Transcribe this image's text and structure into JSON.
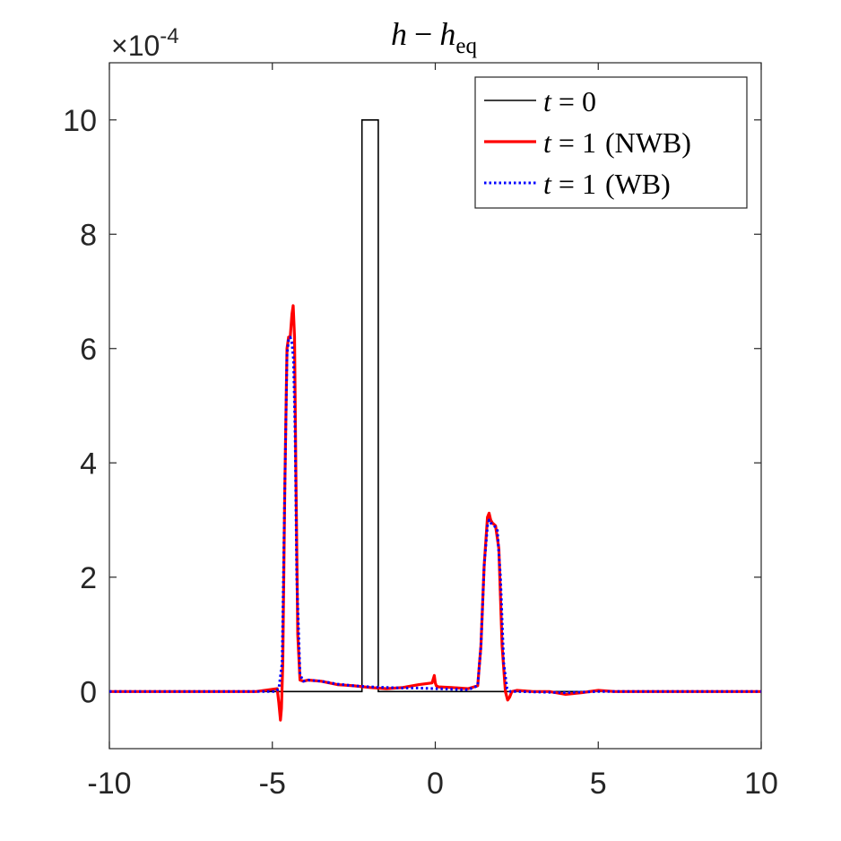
{
  "chart_data": {
    "type": "line",
    "title": {
      "var": "h",
      "op": "−",
      "var2": "h",
      "sub": "eq"
    },
    "xlabel": "",
    "ylabel": "",
    "xlim": [
      -10,
      10
    ],
    "ylim": [
      -1,
      11
    ],
    "exponent_label": {
      "base": "×10",
      "exp": "-4"
    },
    "xticks": [
      -10,
      -5,
      0,
      5,
      10
    ],
    "xtick_labels": [
      "-10",
      "-5",
      "0",
      "5",
      "10"
    ],
    "yticks": [
      0,
      2,
      4,
      6,
      8,
      10
    ],
    "ytick_labels": [
      "0",
      "2",
      "4",
      "6",
      "8",
      "10"
    ],
    "grid": false,
    "legend_position": "top-right",
    "series": [
      {
        "name": "t = 0",
        "legend": {
          "var": "t",
          "eq": " = 0",
          "note": ""
        },
        "color": "#000000",
        "style": "solid",
        "x": [
          -10,
          -2.25,
          -2.25,
          -1.75,
          -1.75,
          10
        ],
        "y": [
          0,
          0,
          10,
          10,
          0,
          0
        ]
      },
      {
        "name": "t = 1 (NWB)",
        "legend": {
          "var": "t",
          "eq": " = 1",
          "note": "(NWB)"
        },
        "color": "#ff0000",
        "style": "solid",
        "x": [
          -10,
          -5.5,
          -4.85,
          -4.8,
          -4.75,
          -4.72,
          -4.68,
          -4.62,
          -4.55,
          -4.5,
          -4.45,
          -4.4,
          -4.36,
          -4.32,
          -4.28,
          -4.22,
          -4.15,
          -4.05,
          -3.9,
          -3.5,
          -3.0,
          -2.5,
          -2.0,
          -1.5,
          -1.0,
          -0.5,
          -0.1,
          -0.03,
          0.0,
          0.03,
          0.1,
          0.5,
          1.0,
          1.3,
          1.4,
          1.5,
          1.6,
          1.65,
          1.7,
          1.75,
          1.85,
          1.95,
          2.05,
          2.15,
          2.22,
          2.28,
          2.35,
          2.5,
          3.0,
          3.5,
          4.0,
          4.5,
          5.0,
          5.5,
          6.0,
          10
        ],
        "y": [
          0,
          0,
          0.05,
          -0.2,
          -0.5,
          -0.3,
          0.5,
          3.5,
          6.0,
          6.2,
          6.2,
          6.6,
          6.75,
          6.2,
          4.0,
          1.0,
          0.2,
          0.18,
          0.2,
          0.18,
          0.12,
          0.1,
          0.07,
          0.05,
          0.07,
          0.12,
          0.15,
          0.28,
          0.15,
          0.1,
          0.08,
          0.07,
          0.05,
          0.1,
          0.8,
          2.2,
          3.05,
          3.12,
          3.0,
          2.95,
          2.9,
          2.5,
          0.8,
          0.0,
          -0.15,
          -0.1,
          0.0,
          0.02,
          0.0,
          0.0,
          -0.05,
          -0.02,
          0.02,
          0.0,
          0.0,
          0
        ]
      },
      {
        "name": "t = 1 (WB)",
        "legend": {
          "var": "t",
          "eq": " = 1",
          "note": "(WB)"
        },
        "color": "#0000ff",
        "style": "dotted",
        "x": [
          -10,
          -4.9,
          -4.8,
          -4.7,
          -4.62,
          -4.55,
          -4.5,
          -4.45,
          -4.4,
          -4.35,
          -4.3,
          -4.25,
          -4.15,
          -4.05,
          -3.9,
          -3.5,
          -3.0,
          -2.5,
          -2.0,
          -1.5,
          -1.0,
          -0.5,
          0.0,
          0.5,
          1.0,
          1.3,
          1.4,
          1.5,
          1.6,
          1.65,
          1.7,
          1.8,
          1.9,
          2.0,
          2.1,
          2.2,
          2.3,
          2.5,
          4.0,
          5.0,
          10
        ],
        "y": [
          0,
          0,
          0.05,
          0.5,
          3.5,
          5.9,
          6.15,
          6.2,
          6.1,
          5.8,
          4.5,
          2.0,
          0.3,
          0.18,
          0.2,
          0.18,
          0.13,
          0.1,
          0.08,
          0.07,
          0.06,
          0.06,
          0.05,
          0.04,
          0.03,
          0.1,
          0.8,
          2.2,
          2.9,
          3.0,
          2.95,
          2.9,
          2.85,
          2.0,
          0.5,
          0.05,
          0.0,
          0.0,
          -0.02,
          0.0,
          0
        ]
      }
    ]
  }
}
